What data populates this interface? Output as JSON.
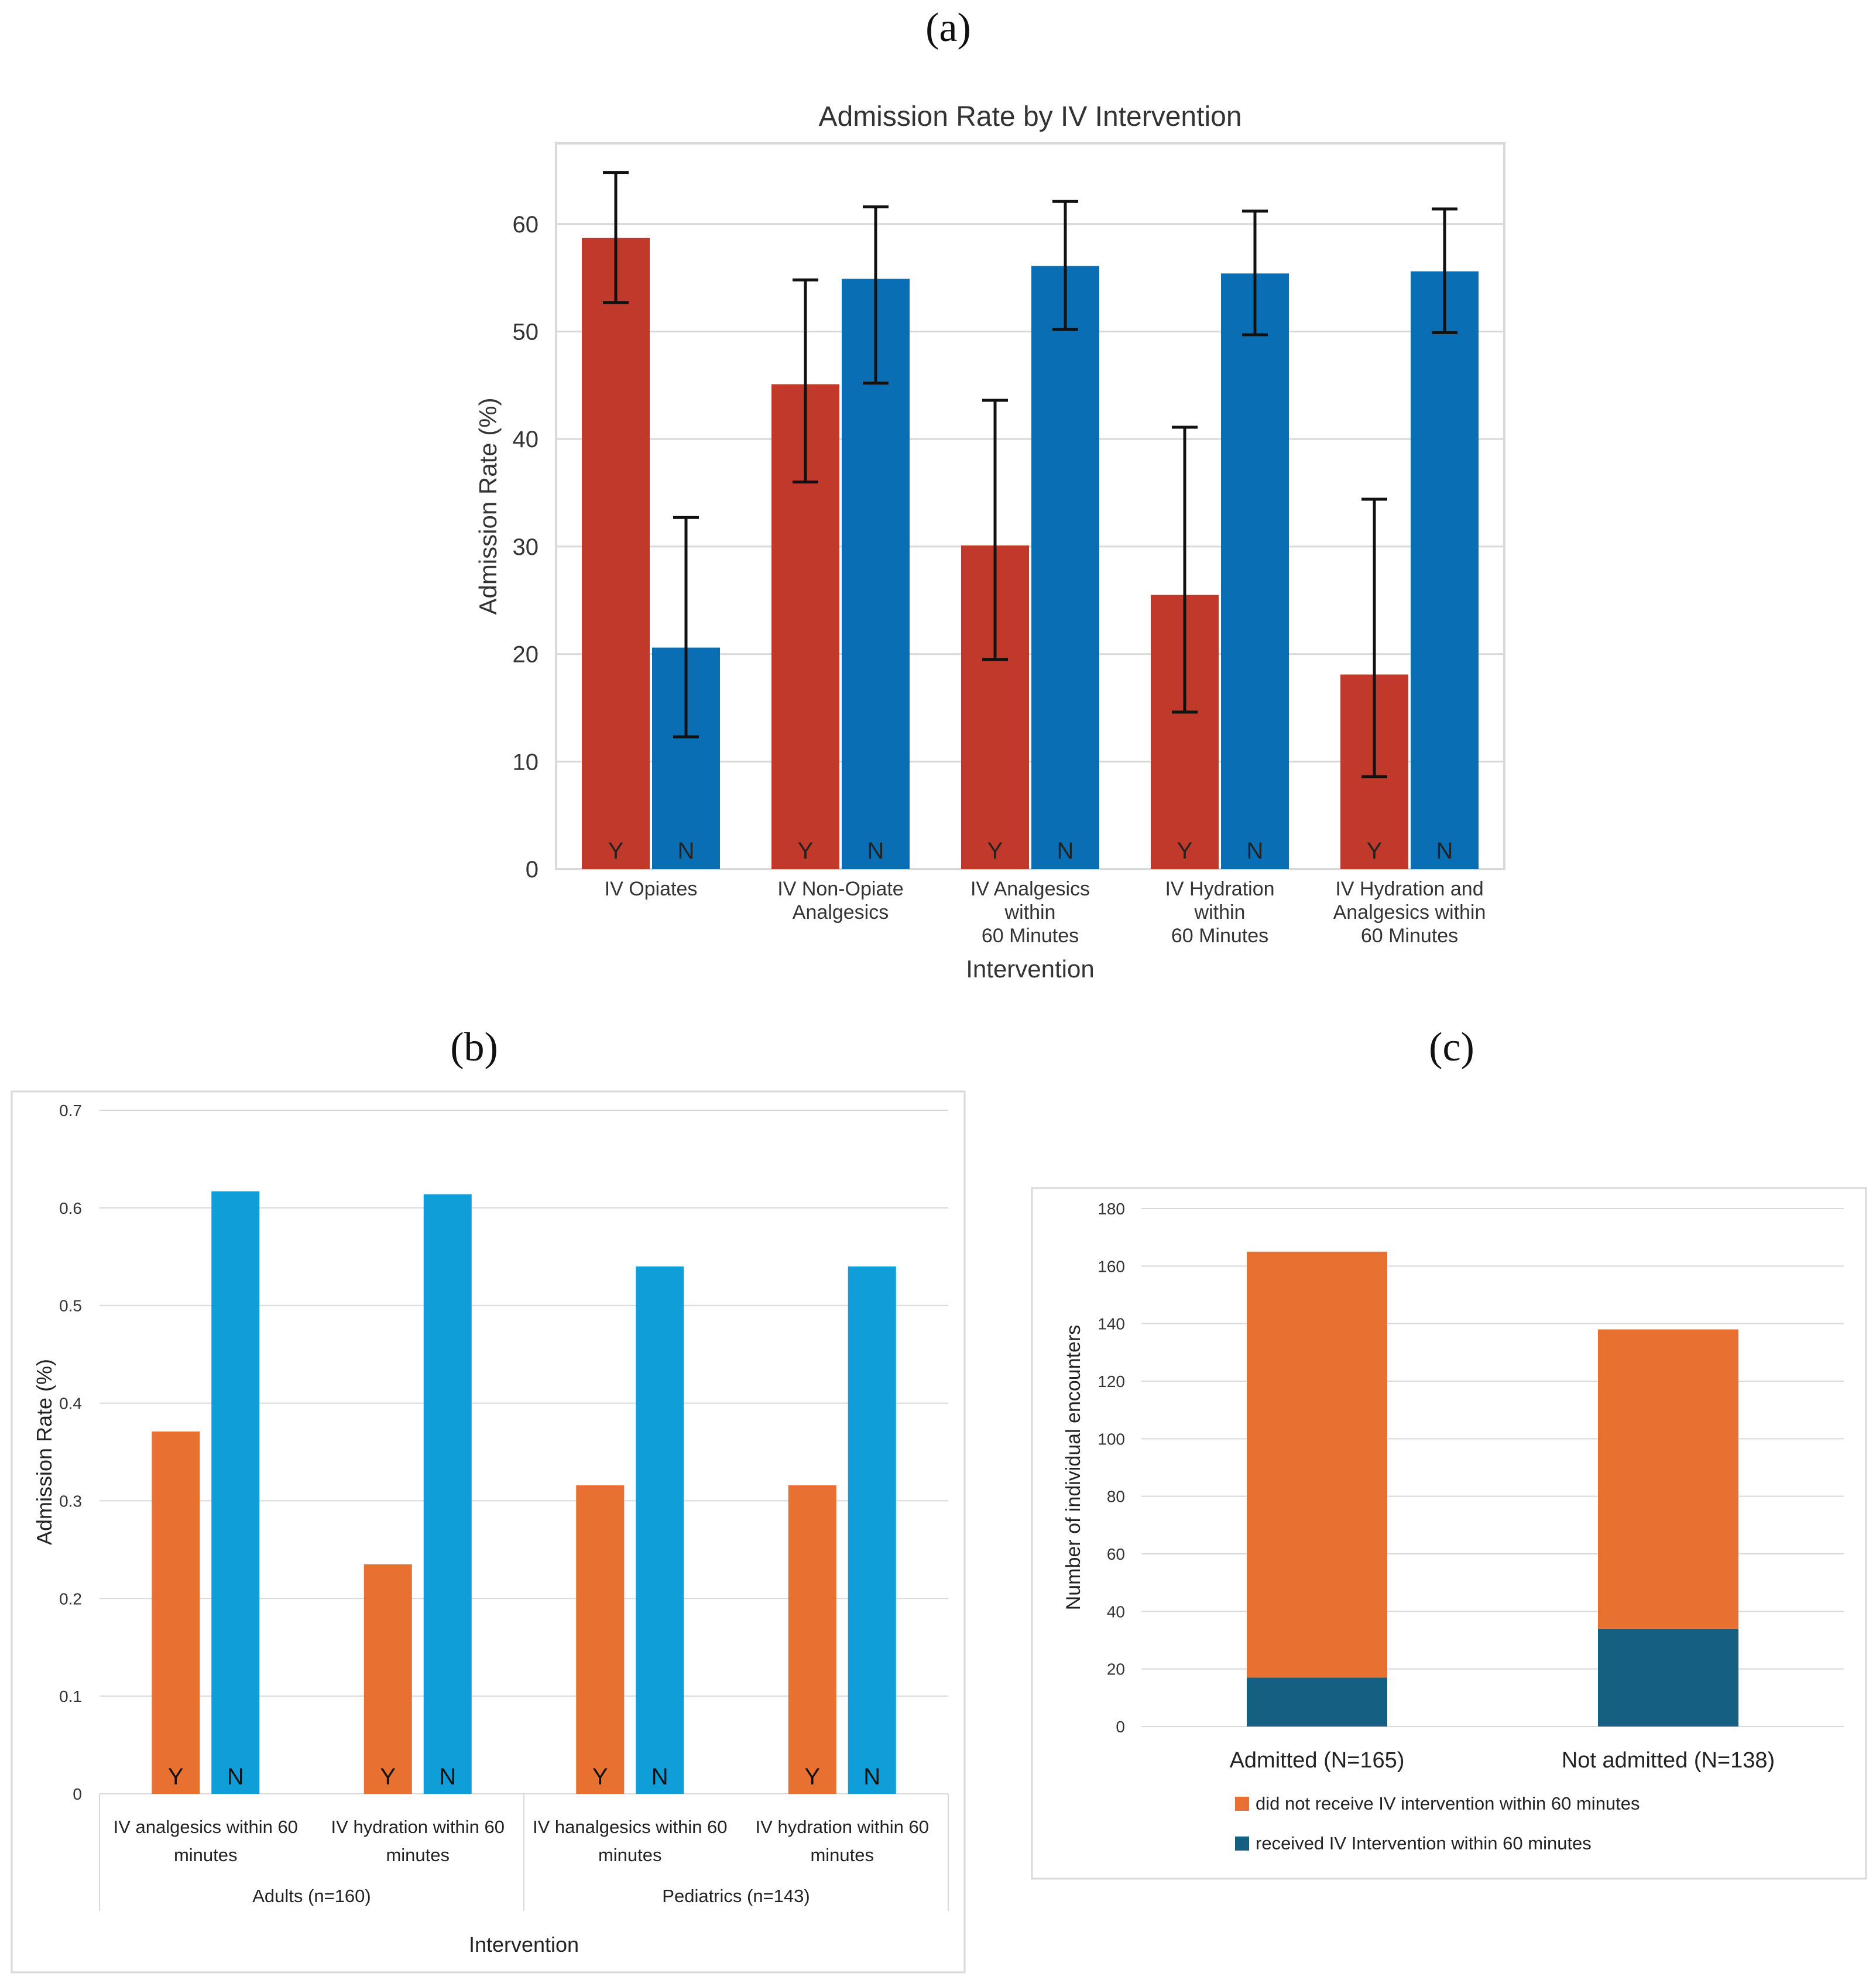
{
  "panels": {
    "a": "(a)",
    "b": "(b)",
    "c": "(c)"
  },
  "chart_data": [
    {
      "id": "a",
      "type": "bar",
      "title": "Admission Rate by IV Intervention",
      "xlabel": "Intervention",
      "ylabel": "Admission Rate (%)",
      "ylim": [
        0,
        67.5
      ],
      "yticks": [
        0,
        10,
        20,
        30,
        40,
        50,
        60
      ],
      "grid": true,
      "categories": [
        [
          "IV Opiates"
        ],
        [
          "IV Non-Opiate",
          "Analgesics"
        ],
        [
          "IV Analgesics",
          "within",
          "60 Minutes"
        ],
        [
          "IV Hydration",
          "within",
          "60 Minutes"
        ],
        [
          "IV Hydration and",
          "Analgesics within",
          "60 Minutes"
        ]
      ],
      "series": [
        {
          "name": "Y",
          "label": "Y",
          "color": "#c0392b",
          "values": [
            58.7,
            45.1,
            30.1,
            25.5,
            18.1
          ],
          "err_low": [
            52.7,
            36.0,
            19.5,
            14.6,
            8.6
          ],
          "err_high": [
            64.8,
            54.8,
            43.6,
            41.1,
            34.4
          ]
        },
        {
          "name": "N",
          "label": "N",
          "color": "#0a6eb4",
          "values": [
            20.6,
            54.9,
            56.1,
            55.4,
            55.6
          ],
          "err_low": [
            12.3,
            45.2,
            50.2,
            49.7,
            49.9
          ],
          "err_high": [
            32.7,
            61.6,
            62.1,
            61.2,
            61.4
          ]
        }
      ]
    },
    {
      "id": "b",
      "type": "bar",
      "title": "",
      "xlabel": "Intervention",
      "ylabel": "Admission Rate (%)",
      "ylim": [
        0,
        0.7
      ],
      "yticks": [
        "0",
        "0.1",
        "0.2",
        "0.3",
        "0.4",
        "0.5",
        "0.6",
        "0.7"
      ],
      "grid": true,
      "categories": [
        [
          "IV analgesics within 60",
          "minutes"
        ],
        [
          "IV hydration within 60",
          "minutes"
        ],
        [
          "IV hanalgesics within 60",
          "minutes"
        ],
        [
          "IV hydration within 60",
          "minutes"
        ]
      ],
      "groups": [
        "Adults (n=160)",
        "Pediatrics (n=143)"
      ],
      "series": [
        {
          "name": "Y",
          "label": "Y",
          "color": "#e87131",
          "values": [
            0.371,
            0.235,
            0.316,
            0.316
          ]
        },
        {
          "name": "N",
          "label": "N",
          "color": "#0f9ed8",
          "values": [
            0.617,
            0.614,
            0.54,
            0.54
          ]
        }
      ]
    },
    {
      "id": "c",
      "type": "bar",
      "stacked": true,
      "title": "",
      "xlabel": "",
      "ylabel": "Number of individual encounters",
      "ylim": [
        0,
        180
      ],
      "yticks": [
        0,
        20,
        40,
        60,
        80,
        100,
        120,
        140,
        160,
        180
      ],
      "grid": true,
      "categories": [
        "Admitted (N=165)",
        "Not admitted (N=138)"
      ],
      "series": [
        {
          "name": "received IV Intervention within 60 minutes",
          "color": "#156082",
          "values": [
            17,
            34
          ]
        },
        {
          "name": "did not receive IV intervention within 60 minutes",
          "color": "#e87131",
          "values": [
            148,
            104
          ]
        }
      ],
      "legend_order": [
        1,
        0
      ],
      "legend": "bottom"
    }
  ]
}
